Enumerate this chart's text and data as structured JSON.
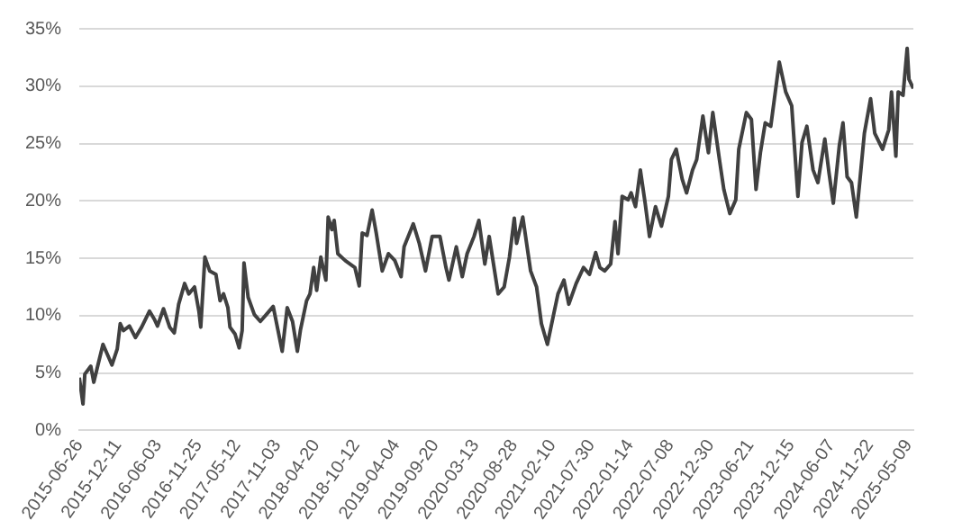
{
  "chart_data": {
    "type": "line",
    "x": [
      "2015-06-26",
      "2015-07-12",
      "2015-07-20",
      "2015-08-15",
      "2015-08-28",
      "2015-09-15",
      "2015-10-07",
      "2015-11-02",
      "2015-11-15",
      "2015-12-08",
      "2015-12-21",
      "2016-01-04",
      "2016-01-30",
      "2016-02-25",
      "2016-03-23",
      "2016-04-26",
      "2016-05-17",
      "2016-05-31",
      "2016-06-26",
      "2016-07-23",
      "2016-08-12",
      "2016-08-31",
      "2016-09-26",
      "2016-10-14",
      "2016-11-08",
      "2016-11-27",
      "2016-12-05",
      "2016-12-23",
      "2017-01-13",
      "2017-02-09",
      "2017-02-27",
      "2017-03-14",
      "2017-04-02",
      "2017-04-11",
      "2017-05-03",
      "2017-05-21",
      "2017-06-03",
      "2017-06-11",
      "2017-06-29",
      "2017-07-26",
      "2017-08-21",
      "2017-09-16",
      "2017-10-16",
      "2017-11-06",
      "2017-11-24",
      "2017-12-16",
      "2018-01-08",
      "2018-01-29",
      "2018-02-11",
      "2018-03-10",
      "2018-03-25",
      "2018-04-10",
      "2018-04-23",
      "2018-05-11",
      "2018-06-02",
      "2018-06-12",
      "2018-06-28",
      "2018-07-08",
      "2018-07-24",
      "2018-08-25",
      "2018-10-06",
      "2018-10-25",
      "2018-11-07",
      "2018-11-28",
      "2018-12-20",
      "2019-01-07",
      "2019-02-02",
      "2019-03-01",
      "2019-03-29",
      "2019-04-25",
      "2019-05-08",
      "2019-06-17",
      "2019-07-13",
      "2019-08-09",
      "2019-09-07",
      "2019-10-11",
      "2019-11-06",
      "2019-11-19",
      "2019-12-21",
      "2020-01-16",
      "2020-02-06",
      "2020-03-07",
      "2020-03-28",
      "2020-04-23",
      "2020-05-12",
      "2020-06-20",
      "2020-07-16",
      "2020-08-08",
      "2020-08-29",
      "2020-09-08",
      "2020-10-05",
      "2020-11-08",
      "2020-12-04",
      "2020-12-25",
      "2021-01-20",
      "2021-02-16",
      "2021-03-07",
      "2021-04-02",
      "2021-04-23",
      "2021-05-25",
      "2021-06-26",
      "2021-07-22",
      "2021-08-18",
      "2021-09-05",
      "2021-09-26",
      "2021-10-22",
      "2021-11-10",
      "2021-11-23",
      "2021-12-11",
      "2022-01-06",
      "2022-01-19",
      "2022-02-07",
      "2022-02-28",
      "2022-03-21",
      "2022-04-09",
      "2022-05-05",
      "2022-05-31",
      "2022-06-30",
      "2022-07-13",
      "2022-08-03",
      "2022-08-29",
      "2022-09-17",
      "2022-10-13",
      "2022-10-31",
      "2022-11-27",
      "2022-12-21",
      "2023-01-09",
      "2023-02-07",
      "2023-02-26",
      "2023-03-24",
      "2023-04-19",
      "2023-05-02",
      "2023-06-04",
      "2023-06-26",
      "2023-07-16",
      "2023-08-04",
      "2023-08-25",
      "2023-09-18",
      "2023-10-25",
      "2023-11-22",
      "2023-12-18",
      "2024-01-14",
      "2024-02-01",
      "2024-02-22",
      "2024-03-20",
      "2024-04-10",
      "2024-05-10",
      "2024-05-28",
      "2024-06-16",
      "2024-07-12",
      "2024-07-28",
      "2024-08-15",
      "2024-09-03",
      "2024-09-24",
      "2024-10-11",
      "2024-10-29",
      "2024-11-25",
      "2024-12-13",
      "2025-01-16",
      "2025-02-12",
      "2025-02-24",
      "2025-03-15",
      "2025-03-25",
      "2025-04-15",
      "2025-05-03",
      "2025-05-11",
      "2025-05-30"
    ],
    "series": [
      {
        "color": "#404040",
        "values": [
          4.6,
          2.3,
          4.9,
          5.6,
          4.2,
          5.7,
          7.5,
          6.3,
          5.7,
          7.1,
          9.3,
          8.7,
          9.1,
          8.1,
          9.0,
          10.4,
          9.7,
          9.1,
          10.6,
          9.0,
          8.5,
          11.0,
          12.8,
          11.9,
          12.5,
          10.4,
          9.0,
          15.1,
          13.9,
          13.6,
          11.3,
          11.9,
          10.7,
          9.0,
          8.4,
          7.2,
          8.7,
          14.6,
          11.6,
          10.1,
          9.5,
          10.1,
          10.8,
          8.7,
          6.9,
          10.7,
          9.5,
          6.9,
          8.7,
          11.3,
          11.9,
          14.2,
          12.2,
          15.1,
          13.1,
          18.6,
          17.5,
          18.3,
          15.4,
          14.8,
          14.2,
          12.6,
          17.2,
          17.0,
          19.2,
          17.2,
          13.9,
          15.4,
          14.8,
          13.4,
          16.0,
          18.0,
          16.3,
          13.9,
          16.9,
          16.9,
          14.2,
          13.1,
          16.0,
          13.4,
          15.4,
          16.9,
          18.3,
          14.5,
          16.9,
          11.9,
          12.5,
          15.1,
          18.5,
          16.3,
          18.6,
          13.9,
          12.5,
          9.3,
          7.5,
          10.1,
          11.9,
          13.1,
          11.0,
          12.8,
          14.2,
          13.6,
          15.5,
          14.2,
          13.9,
          14.5,
          18.2,
          15.4,
          20.4,
          20.1,
          20.7,
          19.5,
          22.7,
          19.8,
          16.9,
          19.5,
          17.8,
          20.4,
          23.6,
          24.5,
          21.9,
          20.7,
          22.7,
          23.6,
          27.4,
          24.2,
          27.7,
          23.6,
          21.0,
          18.9,
          20.1,
          24.5,
          27.7,
          27.1,
          21.0,
          24.2,
          26.8,
          26.5,
          32.1,
          29.5,
          28.3,
          20.4,
          25.1,
          26.5,
          22.7,
          21.6,
          25.4,
          22.5,
          19.8,
          24.8,
          26.8,
          22.1,
          21.6,
          18.6,
          22.1,
          25.9,
          28.9,
          25.9,
          24.5,
          26.2,
          29.5,
          23.9,
          29.5,
          29.2,
          33.3,
          30.6,
          29.8
        ]
      }
    ],
    "xlim": [
      "2015-06-26",
      "2025-05-30"
    ],
    "xticks": [
      "2015-06-26",
      "2015-12-11",
      "2016-06-03",
      "2016-11-25",
      "2017-05-12",
      "2017-11-03",
      "2018-04-20",
      "2018-10-12",
      "2019-04-04",
      "2019-09-20",
      "2020-03-13",
      "2020-08-28",
      "2021-02-10",
      "2021-07-30",
      "2022-01-14",
      "2022-07-08",
      "2022-12-30",
      "2023-06-21",
      "2023-12-15",
      "2024-06-07",
      "2024-11-22",
      "2025-05-09"
    ],
    "ylim": [
      0,
      35
    ],
    "yticks": [
      {
        "value": 0,
        "label": "0%"
      },
      {
        "value": 5,
        "label": "5%"
      },
      {
        "value": 10,
        "label": "10%"
      },
      {
        "value": 15,
        "label": "15%"
      },
      {
        "value": 20,
        "label": "20%"
      },
      {
        "value": 25,
        "label": "25%"
      },
      {
        "value": 30,
        "label": "30%"
      },
      {
        "value": 35,
        "label": "35%"
      }
    ],
    "grid": "y",
    "legend": false,
    "marker": "none",
    "line_style": "solid"
  }
}
